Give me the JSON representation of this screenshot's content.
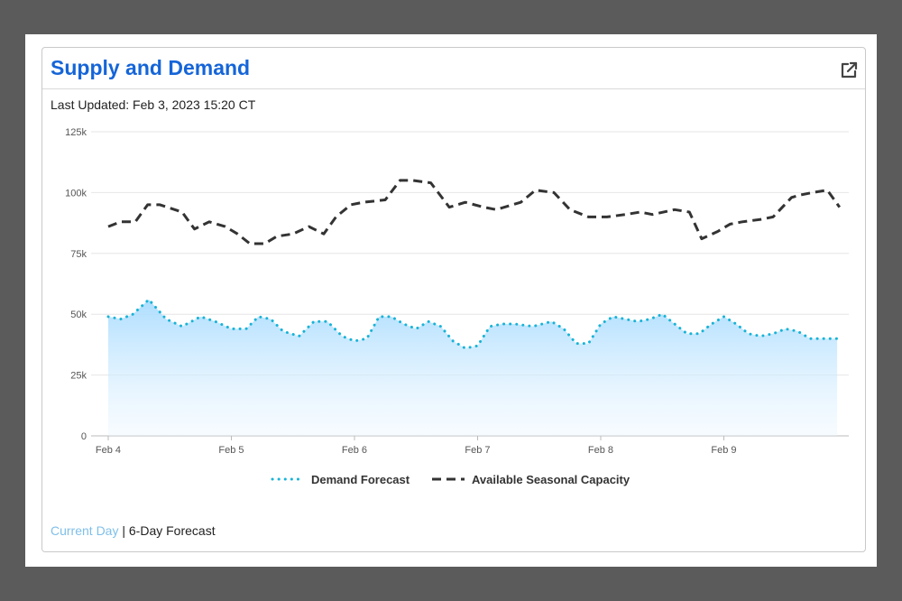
{
  "card": {
    "title": "Supply and Demand",
    "last_updated": "Last Updated: Feb 3, 2023 15:20 CT",
    "icons": {
      "open": "external-link-icon"
    }
  },
  "footer": {
    "current_day": "Current Day",
    "separator": " | ",
    "forecast": "6-Day Forecast"
  },
  "colors": {
    "title": "#1565d8",
    "demand_line": "#19b3d6",
    "demand_fill_top": "#a9dcff",
    "capacity_line": "#333333",
    "link": "#7fbfe8"
  },
  "chart_data": {
    "type": "area",
    "x_tick_labels": [
      "Feb 4",
      "Feb 5",
      "Feb 6",
      "Feb 7",
      "Feb 8",
      "Feb 9"
    ],
    "y_tick_labels": [
      "0",
      "25k",
      "50k",
      "75k",
      "100k",
      "125k"
    ],
    "ylim": [
      0,
      125000
    ],
    "xlim": [
      0,
      6
    ],
    "grid": true,
    "legend_position": "bottom-center",
    "series": [
      {
        "name": "Demand Forecast",
        "style": "dotted-area",
        "x": [
          0,
          0.1,
          0.2,
          0.33,
          0.47,
          0.6,
          0.75,
          0.87,
          1.0,
          1.12,
          1.22,
          1.32,
          1.42,
          1.55,
          1.67,
          1.78,
          1.9,
          2.0,
          2.1,
          2.2,
          2.3,
          2.4,
          2.5,
          2.6,
          2.7,
          2.8,
          2.9,
          3.0,
          3.1,
          3.2,
          3.3,
          3.45,
          3.6,
          3.7,
          3.8,
          3.9,
          4.0,
          4.1,
          4.2,
          4.3,
          4.4,
          4.5,
          4.6,
          4.7,
          4.8,
          4.9,
          5.0,
          5.1,
          5.2,
          5.3,
          5.4,
          5.5,
          5.6,
          5.7,
          5.8,
          5.92
        ],
        "values": [
          49000,
          48000,
          50000,
          56000,
          48000,
          45000,
          49000,
          47000,
          44000,
          44000,
          49000,
          48000,
          43000,
          41000,
          47000,
          47000,
          41000,
          39000,
          40000,
          49000,
          49000,
          46000,
          44000,
          47000,
          45000,
          39000,
          36000,
          37000,
          45000,
          46000,
          46000,
          45000,
          47000,
          44000,
          38000,
          38000,
          46000,
          49000,
          48000,
          47000,
          48000,
          50000,
          46000,
          42000,
          42000,
          46000,
          49000,
          46000,
          42000,
          41000,
          42000,
          44000,
          43000,
          40000,
          40000,
          40000
        ]
      },
      {
        "name": "Available Seasonal Capacity",
        "style": "dashed-line",
        "x": [
          0,
          0.1,
          0.22,
          0.32,
          0.42,
          0.6,
          0.7,
          0.82,
          0.95,
          1.05,
          1.15,
          1.27,
          1.37,
          1.5,
          1.63,
          1.75,
          1.85,
          1.97,
          2.07,
          2.25,
          2.37,
          2.47,
          2.62,
          2.77,
          2.9,
          3.05,
          3.15,
          3.35,
          3.47,
          3.62,
          3.75,
          3.9,
          4.05,
          4.2,
          4.32,
          4.42,
          4.6,
          4.72,
          4.82,
          4.95,
          5.05,
          5.15,
          5.3,
          5.4,
          5.55,
          5.62,
          5.72,
          5.84,
          5.94
        ],
        "values": [
          86000,
          88000,
          88000,
          95000,
          95000,
          92000,
          85000,
          88000,
          86000,
          83000,
          79000,
          79000,
          82000,
          83000,
          86000,
          83000,
          90000,
          95000,
          96000,
          97000,
          105000,
          105000,
          104000,
          94000,
          96000,
          94000,
          93000,
          96000,
          101000,
          100000,
          93000,
          90000,
          90000,
          91000,
          92000,
          91000,
          93000,
          92000,
          81000,
          84000,
          87000,
          88000,
          89000,
          90000,
          98000,
          99000,
          100000,
          101000,
          94000
        ]
      }
    ]
  }
}
